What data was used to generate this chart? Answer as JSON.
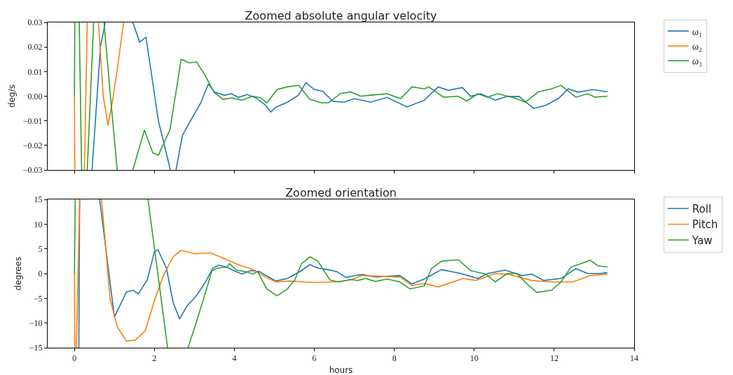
{
  "chart_data": [
    {
      "type": "line",
      "title": "Zoomed absolute angular velocity",
      "ylabel": "deg/s",
      "xlim": [
        -0.67,
        14
      ],
      "xticks": [
        0,
        2,
        4,
        6,
        8,
        10,
        12,
        14
      ],
      "ylim": [
        -0.03,
        0.03
      ],
      "yticks": [
        {
          "value": -0.03,
          "label": "−0.03"
        },
        {
          "value": -0.02,
          "label": "−0.02"
        },
        {
          "value": -0.01,
          "label": "−0.01"
        },
        {
          "value": 0,
          "label": "0.00"
        },
        0.01,
        0.02,
        0.03
      ],
      "tick_labels": "y",
      "legend": "top right",
      "line_style": "solid",
      "series": [
        {
          "name": "ω₁",
          "color": "#1f77b4",
          "x": [
            0.44,
            0.65,
            0.77,
            1.1,
            1.46,
            1.63,
            1.79,
            2.1,
            2.4,
            2.47,
            2.54,
            2.7,
            2.91,
            3.16,
            3.35,
            3.51,
            3.75,
            3.93,
            4.1,
            4.32,
            4.54,
            4.77,
            4.91,
            5.05,
            5.33,
            5.6,
            5.79,
            6.0,
            6.21,
            6.46,
            6.74,
            7.0,
            7.4,
            7.82,
            8.32,
            8.75,
            9.1,
            9.35,
            9.7,
            9.91,
            10.16,
            10.53,
            10.82,
            11.12,
            11.49,
            11.8,
            12.1,
            12.35,
            12.6,
            12.96,
            13.33
          ],
          "values": [
            -0.03,
            0.02,
            0.03,
            null,
            0.03,
            0.022,
            0.024,
            -0.01,
            -0.03,
            null,
            -0.03,
            -0.016,
            -0.0098,
            -0.0027,
            0.005,
            0.0016,
            0.0004,
            0.001,
            -0.0005,
            0.0007,
            -0.0007,
            -0.0035,
            -0.0064,
            -0.0044,
            -0.0024,
            0.0004,
            0.0055,
            0.0027,
            0.002,
            -0.0021,
            -0.0024,
            -0.001,
            -0.0024,
            -0.0005,
            -0.0044,
            -0.0016,
            0.0038,
            0.0024,
            0.0035,
            0,
            0.001,
            -0.0016,
            -0.0001,
            -0.0001,
            -0.005,
            -0.0036,
            -0.001,
            0.003,
            0.0016,
            0.0027,
            0.0018
          ]
        },
        {
          "name": "ω₂",
          "color": "#ff7f0e",
          "x": [
            0,
            0.01,
            0.05,
            0.25,
            0.32,
            0.45,
            0.6,
            0.72,
            0.84,
            0.95,
            1.07,
            1.23
          ],
          "values": [
            0,
            -0.03,
            null,
            -0.03,
            0.03,
            null,
            0.03,
            0,
            -0.0118,
            -0.002,
            0.0107,
            0.03
          ]
        },
        {
          "name": "ω₃",
          "color": "#2ca02c",
          "x": [
            0,
            0.01,
            0.06,
            0.12,
            0.18,
            0.25,
            0.32,
            0.48,
            0.6,
            0.74,
            0.9,
            1.07,
            1.3,
            1.46,
            1.75,
            1.96,
            2.1,
            2.39,
            2.67,
            2.88,
            3.05,
            3.26,
            3.49,
            3.72,
            3.93,
            4.19,
            4.46,
            4.67,
            4.81,
            5.07,
            5.33,
            5.61,
            5.89,
            6.18,
            6.35,
            6.65,
            6.9,
            7.16,
            7.4,
            7.82,
            8.16,
            8.44,
            8.75,
            8.86,
            9.23,
            9.6,
            9.81,
            10.09,
            10.33,
            10.58,
            10.95,
            11.28,
            11.61,
            11.93,
            12.17,
            12.54,
            12.84,
            13.02,
            13.33
          ],
          "values": [
            0,
            0.03,
            null,
            0.03,
            -0.03,
            null,
            -0.03,
            0.03,
            null,
            0.03,
            0,
            -0.03,
            null,
            -0.03,
            -0.0138,
            -0.023,
            -0.024,
            -0.0135,
            0.015,
            0.0135,
            0.014,
            0.0087,
            0.0016,
            -0.0013,
            -0.0007,
            -0.0016,
            0,
            -0.0007,
            -0.0027,
            0.0027,
            0.0038,
            0.0044,
            -0.0013,
            -0.0027,
            -0.0027,
            0.001,
            0.0018,
            0,
            0.0004,
            0.001,
            -0.001,
            0.0038,
            0.003,
            0.0038,
            -0.0004,
            0,
            -0.002,
            0.001,
            -0.0004,
            0.001,
            -0.0004,
            -0.0024,
            0.0018,
            0.003,
            0.0044,
            -0.0004,
            0.001,
            -0.0004,
            0
          ]
        }
      ]
    },
    {
      "type": "line",
      "title": "Zoomed orientation",
      "xlabel": "hours",
      "ylabel": "degrees",
      "xlim": [
        -0.67,
        14
      ],
      "xticks": [
        0,
        2,
        4,
        6,
        8,
        10,
        12,
        14
      ],
      "ylim": [
        -15,
        15
      ],
      "yticks": [
        {
          "value": -15,
          "label": "−15"
        },
        {
          "value": -10,
          "label": "−10"
        },
        {
          "value": -5,
          "label": "−5"
        },
        0,
        5,
        10,
        15
      ],
      "legend": "top right",
      "line_style": "solid",
      "series": [
        {
          "name": "Roll",
          "color": "#1f77b4",
          "x": [
            0.11,
            0.13,
            0.4,
            0.63,
            1.0,
            1.3,
            1.47,
            1.6,
            1.82,
            2.0,
            2.09,
            2.3,
            2.47,
            2.63,
            2.82,
            3.05,
            3.28,
            3.46,
            3.61,
            3.81,
            3.98,
            4.19,
            4.4,
            4.63,
            4.84,
            5.04,
            5.33,
            5.68,
            5.89,
            6.09,
            6.33,
            6.56,
            6.79,
            7.09,
            7.2,
            7.53,
            8.14,
            8.44,
            8.75,
            9.18,
            9.67,
            10.09,
            10.33,
            10.77,
            11.19,
            11.44,
            11.74,
            12.17,
            12.54,
            12.84,
            13.14,
            13.33
          ],
          "values": [
            -15,
            15,
            null,
            15,
            -8.8,
            -3.7,
            -3.4,
            -4.1,
            -1.3,
            4.4,
            4.8,
            1.1,
            -5.9,
            -9.2,
            -6.5,
            -4.5,
            -1.7,
            1.1,
            1.7,
            1.3,
            0.6,
            -0.1,
            0.6,
            0.4,
            -0.6,
            -1.5,
            -1.0,
            0.6,
            1.8,
            1.1,
            0.8,
            0.4,
            -0.8,
            -0.3,
            -0.2,
            -0.7,
            -0.4,
            -2.1,
            -1.1,
            0.8,
            0,
            -1.0,
            0,
            0.7,
            -0.4,
            -0.1,
            -1.4,
            -1.0,
            1.0,
            0,
            0,
            0.2
          ]
        },
        {
          "name": "Pitch",
          "color": "#ff7f0e",
          "x": [
            0,
            0.01,
            0.03,
            0.05,
            0.13,
            0.4,
            0.68,
            0.89,
            1.07,
            1.3,
            1.53,
            1.77,
            2.0,
            2.23,
            2.47,
            2.67,
            3.0,
            3.4,
            3.75,
            4.1,
            4.5,
            4.8,
            5.04,
            5.39,
            5.74,
            6.04,
            6.5,
            6.9,
            7.2,
            8.14,
            8.44,
            8.75,
            9.1,
            9.72,
            10.03,
            10.53,
            10.88,
            11.44,
            11.93,
            12.47,
            12.9,
            13.33
          ],
          "values": [
            0,
            -15,
            null,
            -15,
            15,
            null,
            15,
            -5.1,
            -10.7,
            -13.7,
            -13.4,
            -11.6,
            -5.5,
            -0.3,
            3.4,
            4.7,
            4.0,
            4.2,
            3.0,
            1.8,
            0.7,
            -0.8,
            -1.7,
            -1.5,
            -1.7,
            -1.8,
            -1.7,
            -1.3,
            -0.4,
            -0.7,
            -2.4,
            -2.0,
            -2.7,
            -1.0,
            -1.4,
            0,
            -0.2,
            -1.4,
            -1.7,
            -1.7,
            -0.4,
            -0.1
          ]
        },
        {
          "name": "Yaw",
          "color": "#2ca02c",
          "x": [
            0,
            0.02,
            1.0,
            1.84,
            2.33,
            2.6,
            2.84,
            3.05,
            3.23,
            3.44,
            3.58,
            3.81,
            3.88,
            4.05,
            4.28,
            4.46,
            4.58,
            4.81,
            5.07,
            5.33,
            5.51,
            5.68,
            5.89,
            6.09,
            6.39,
            6.61,
            6.9,
            7.09,
            7.28,
            7.53,
            7.82,
            8.14,
            8.39,
            8.75,
            8.93,
            9.18,
            9.6,
            9.91,
            10.28,
            10.53,
            10.82,
            11.07,
            11.32,
            11.56,
            11.93,
            12.17,
            12.42,
            12.67,
            12.9,
            13.09,
            13.33
          ],
          "values": [
            0,
            15,
            null,
            15,
            -15,
            null,
            -15,
            -9.8,
            -5.1,
            0.6,
            1.1,
            1.3,
            2.0,
            0.7,
            0.4,
            -0.1,
            0.4,
            -3.1,
            -4.5,
            -3.1,
            -1.3,
            2.0,
            3.4,
            2.5,
            -1.3,
            -1.7,
            -1.2,
            -1.4,
            -1.0,
            -1.6,
            -1.1,
            -1.7,
            -3.1,
            -2.5,
            1.0,
            2.5,
            2.8,
            0.6,
            -0.1,
            -1.7,
            0,
            0,
            -2.1,
            -3.8,
            -3.4,
            -1.7,
            1.3,
            2.0,
            2.7,
            1.6,
            1.3
          ]
        }
      ]
    }
  ]
}
